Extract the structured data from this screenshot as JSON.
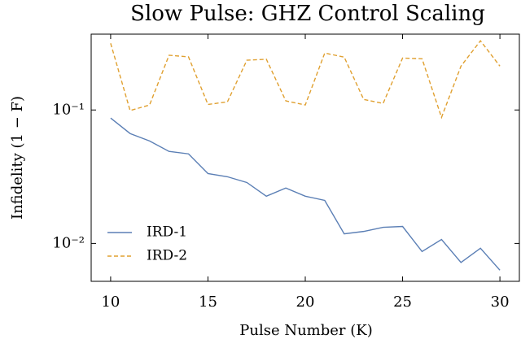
{
  "chart_data": {
    "type": "line",
    "title": "Slow Pulse: GHZ Control Scaling",
    "xlabel": "Pulse Number (K)",
    "ylabel": "Infidelity (1 − F)",
    "x": [
      10,
      11,
      12,
      13,
      14,
      15,
      16,
      17,
      18,
      19,
      20,
      21,
      22,
      23,
      24,
      25,
      26,
      27,
      28,
      29,
      30
    ],
    "series": [
      {
        "name": "IRD-1",
        "color": "#5b7fb5",
        "dash": "solid",
        "values": [
          0.087,
          0.0666,
          0.0586,
          0.0489,
          0.0469,
          0.0334,
          0.0316,
          0.0286,
          0.0226,
          0.026,
          0.0226,
          0.021,
          0.0118,
          0.0123,
          0.0132,
          0.0134,
          0.0087,
          0.0107,
          0.0072,
          0.0092,
          0.0063
        ]
      },
      {
        "name": "IRD-2",
        "color": "#e0a030",
        "dash": "dashed",
        "values": [
          0.316,
          0.099,
          0.109,
          0.257,
          0.25,
          0.11,
          0.115,
          0.236,
          0.24,
          0.117,
          0.109,
          0.267,
          0.249,
          0.12,
          0.112,
          0.245,
          0.242,
          0.088,
          0.213,
          0.33,
          0.213
        ]
      }
    ],
    "xlim": [
      9,
      31
    ],
    "xticks": [
      10,
      15,
      20,
      25,
      30
    ],
    "ylim": [
      0.0052,
      0.37
    ],
    "log_y": true,
    "yticks": [
      {
        "value": 0.1,
        "label": "10⁻¹"
      },
      {
        "value": 0.01,
        "label": "10⁻²"
      }
    ],
    "legend": "lower left",
    "grid": false
  }
}
